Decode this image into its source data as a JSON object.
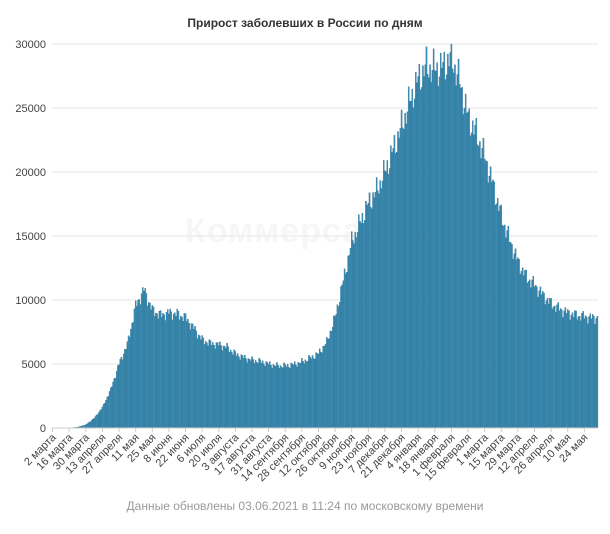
{
  "chart_data": {
    "type": "bar",
    "title": "Прирост заболевших в России по дням",
    "xlabel": "",
    "ylabel": "",
    "ylim": [
      0,
      30000
    ],
    "grid": true,
    "legend": "none",
    "bar_color": "#3a8fb7",
    "bar_edge_color": "#24607f",
    "y_ticks": [
      "0",
      "5000",
      "10000",
      "15000",
      "20000",
      "25000",
      "30000"
    ],
    "x_tick_labels": [
      "2 марта",
      "16 марта",
      "30 марта",
      "13 апреля",
      "27 апреля",
      "11 мая",
      "25 мая",
      "8 июня",
      "22 июня",
      "6 июля",
      "20 июля",
      "3 августа",
      "17 августа",
      "31 августа",
      "14 сентября",
      "28 сентября",
      "12 октября",
      "26 октября",
      "9 ноября",
      "23 ноября",
      "7 декабря",
      "21 декабря",
      "4 января",
      "18 января",
      "1 февраля",
      "15 февраля",
      "1 марта",
      "15 марта",
      "29 марта",
      "12 апреля",
      "26 апреля",
      "10 мая",
      "24 мая"
    ],
    "days": 460,
    "daily_cases_by_week": [
      0,
      2,
      10,
      60,
      250,
      750,
      1600,
      3000,
      5000,
      6500,
      9500,
      10800,
      9200,
      8800,
      9000,
      8900,
      8600,
      7800,
      6900,
      6600,
      6500,
      6300,
      5800,
      5500,
      5300,
      5200,
      5000,
      4850,
      4850,
      4950,
      5150,
      5450,
      5800,
      6700,
      8600,
      11500,
      14500,
      16000,
      17500,
      18500,
      20000,
      21700,
      23500,
      25500,
      27200,
      28200,
      28000,
      28200,
      29000,
      27000,
      24300,
      23000,
      21200,
      19000,
      16600,
      14700,
      13000,
      11800,
      11200,
      10400,
      9700,
      9300,
      9000,
      8800,
      8700,
      8600,
      8650,
      8600,
      8800,
      8500,
      9000,
      9200,
      8900,
      9100
    ]
  },
  "footnote": "Данные обновлены 03.06.2021 в 11:24 по московскому времени",
  "watermark": "Коммерсантъ"
}
